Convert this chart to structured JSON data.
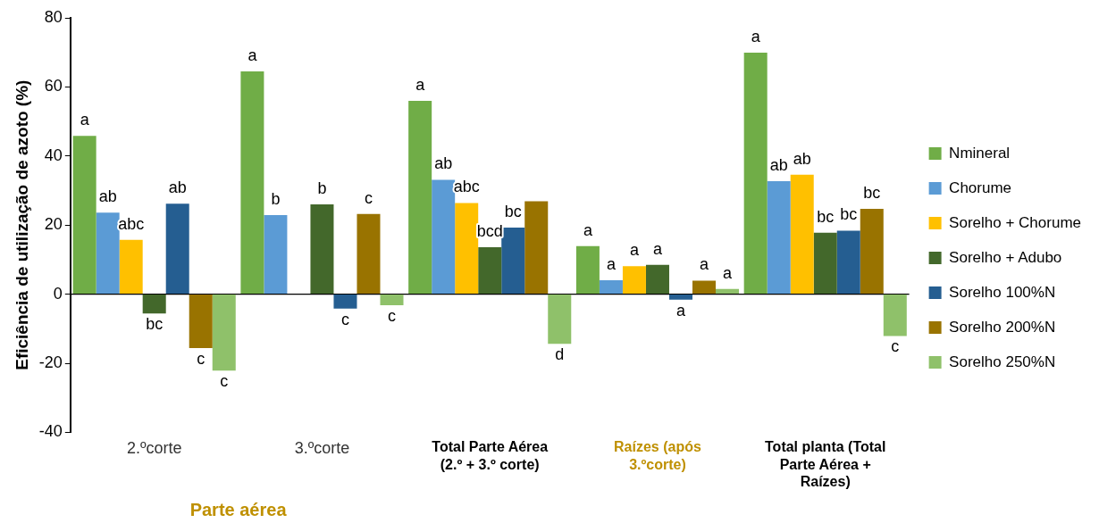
{
  "chart_data": {
    "type": "bar",
    "ylabel": "Eficiência de utilização de azoto (%)",
    "categories": [
      "2.ºcorte",
      "3.ºcorte",
      "Total Parte Aérea (2.º + 3.º corte)",
      "Raízes (após 3.ºcorte)",
      "Total planta (Total Parte Aérea + Raízes)"
    ],
    "series": [
      {
        "name": "Nmineral",
        "color": "#70ad47",
        "values": [
          45.8,
          64.5,
          56.0,
          13.9,
          69.9
        ],
        "value_labels": [
          "a",
          "a",
          "a",
          "a",
          "a"
        ]
      },
      {
        "name": "Chorume",
        "color": "#5b9bd5",
        "values": [
          23.6,
          22.9,
          33.1,
          4.0,
          32.7
        ],
        "value_labels": [
          "ab",
          "b",
          "ab",
          "a",
          "ab"
        ]
      },
      {
        "name": "Sorelho + Chorume",
        "color": "#ffc000",
        "values": [
          15.7,
          null,
          26.4,
          8.1,
          34.6
        ],
        "value_labels": [
          "abc",
          null,
          "abc",
          "a",
          "ab"
        ]
      },
      {
        "name": "Sorelho + Adubo",
        "color": "#43682b",
        "values": [
          -5.6,
          26.0,
          13.6,
          8.5,
          17.8
        ],
        "value_labels": [
          "bc",
          "b",
          "bcd",
          "a",
          "bc"
        ]
      },
      {
        "name": "Sorelho 100%N",
        "color": "#255e91",
        "values": [
          26.2,
          -4.2,
          19.3,
          -1.6,
          18.4
        ],
        "value_labels": [
          "ab",
          "c",
          "bc",
          "a",
          "bc"
        ]
      },
      {
        "name": "Sorelho 200%N",
        "color": "#997300",
        "values": [
          -15.6,
          23.2,
          26.9,
          3.9,
          24.7
        ],
        "value_labels": [
          "c",
          "c",
          null,
          "a",
          "bc"
        ]
      },
      {
        "name": "Sorelho 250%N",
        "color": "#8fc16a",
        "values": [
          -22.1,
          -3.2,
          -14.4,
          1.5,
          -12.1
        ],
        "value_labels": [
          "c",
          "c",
          "d",
          "a",
          "c"
        ]
      }
    ],
    "ylim": [
      -40,
      80
    ],
    "yticks": [
      -40,
      -20,
      0,
      20,
      40,
      60,
      80
    ],
    "grid": false,
    "legend": "right",
    "ref_lines": [
      {
        "axis": "y",
        "value": 0,
        "color": "#000000"
      }
    ],
    "annotations": [
      "Parte aérea"
    ]
  }
}
